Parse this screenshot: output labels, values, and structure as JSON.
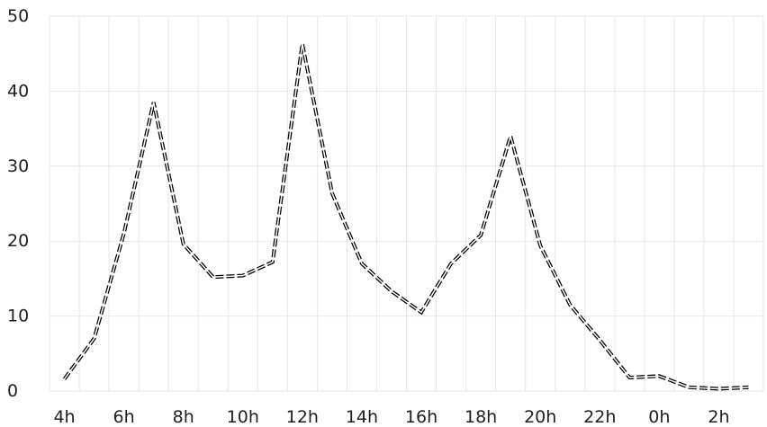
{
  "chart_data": {
    "type": "line",
    "x_labels_shown": [
      "4h",
      "6h",
      "8h",
      "10h",
      "12h",
      "14h",
      "16h",
      "18h",
      "20h",
      "22h",
      "0h",
      "2h"
    ],
    "y_ticks": [
      0,
      10,
      20,
      30,
      40,
      50
    ],
    "ylim": [
      0,
      50
    ],
    "grid": true,
    "series": [
      {
        "values": [
          1.6,
          7.0,
          21.0,
          38.5,
          19.6,
          15.2,
          15.4,
          17.2,
          46.3,
          26.4,
          17.0,
          13.3,
          10.5,
          17.0,
          20.8,
          34.0,
          19.4,
          11.5,
          6.8,
          1.8,
          2.0,
          0.5,
          0.3,
          0.5
        ],
        "color": "#000000"
      }
    ]
  }
}
